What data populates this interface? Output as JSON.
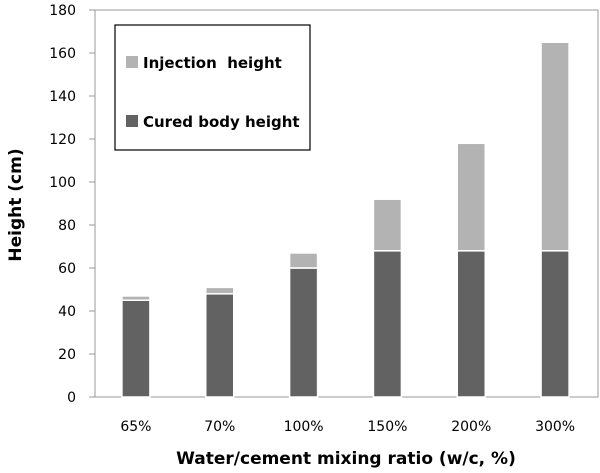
{
  "chart_data": {
    "type": "bar",
    "stacked": true,
    "categories": [
      "65%",
      "70%",
      "100%",
      "150%",
      "200%",
      "300%"
    ],
    "series": [
      {
        "name": "Cured body height",
        "color": "#626262",
        "values": [
          45,
          48,
          60,
          68,
          68,
          68
        ]
      },
      {
        "name": "Injection  height",
        "color": "#b3b3b3",
        "values": [
          2,
          3,
          7,
          24,
          50,
          97
        ]
      }
    ],
    "title": "",
    "xlabel": "Water/cement mixing ratio (w/c, %)",
    "ylabel": "Height (cm)",
    "ylim": [
      0,
      180
    ],
    "yticks": [
      0,
      20,
      40,
      60,
      80,
      100,
      120,
      140,
      160,
      180
    ],
    "grid": false,
    "legend_position": "top-left"
  }
}
